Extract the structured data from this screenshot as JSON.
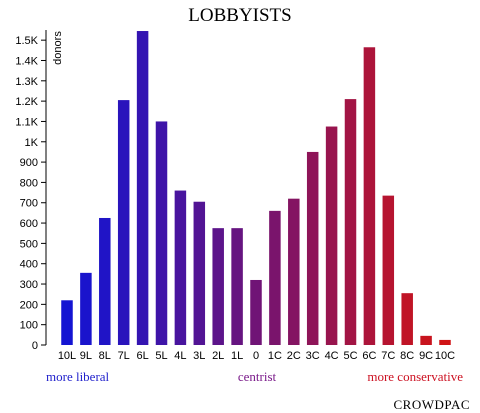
{
  "chart_data": {
    "type": "bar",
    "title": "LOBBYISTS",
    "ylabel": "donors",
    "ylim": [
      0,
      1550
    ],
    "y_ticks": [
      0,
      100,
      200,
      300,
      400,
      500,
      600,
      700,
      800,
      900,
      1000,
      1100,
      1200,
      1300,
      1400,
      1500
    ],
    "y_tick_labels": [
      "0",
      "100",
      "200",
      "300",
      "400",
      "500",
      "600",
      "700",
      "800",
      "900",
      "1K",
      "1.1K",
      "1.2K",
      "1.3K",
      "1.4K",
      "1.5K"
    ],
    "categories": [
      "10L",
      "9L",
      "8L",
      "7L",
      "6L",
      "5L",
      "4L",
      "3L",
      "2L",
      "1L",
      "0",
      "1C",
      "2C",
      "3C",
      "4C",
      "5C",
      "6C",
      "7C",
      "8C",
      "9C",
      "10C"
    ],
    "values": [
      220,
      355,
      625,
      1205,
      1545,
      1100,
      760,
      705,
      575,
      575,
      320,
      660,
      720,
      950,
      1075,
      1210,
      1465,
      735,
      255,
      45,
      25
    ],
    "colors": [
      "#1414d2",
      "#1a14cc",
      "#2014c6",
      "#2a14bc",
      "#3414b2",
      "#3e14a8",
      "#48149e",
      "#521494",
      "#5c148a",
      "#661480",
      "#701476",
      "#7a146c",
      "#841462",
      "#8e1458",
      "#98144e",
      "#a21444",
      "#ac143a",
      "#b61430",
      "#c01426",
      "#c8141e",
      "#d01416"
    ],
    "spectrum_labels": {
      "left": "more liberal",
      "center": "centrist",
      "right": "more conservative",
      "left_color": "#2222cc",
      "center_color": "#7a1a8a",
      "right_color": "#cc1122"
    }
  },
  "brand": "CROWDPAC"
}
